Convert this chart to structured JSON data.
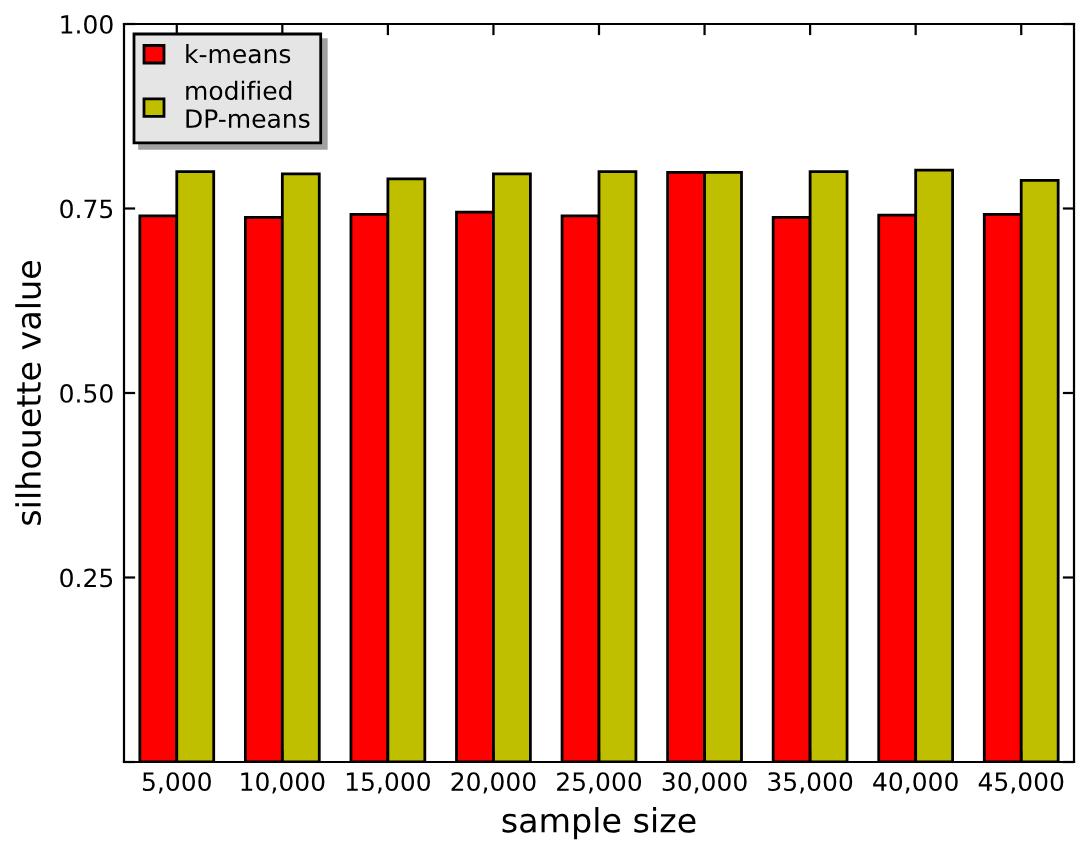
{
  "chart_data": {
    "type": "bar",
    "xlabel": "sample size",
    "ylabel": "silhouette value",
    "categories": [
      "5,000",
      "10,000",
      "15,000",
      "20,000",
      "25,000",
      "30,000",
      "35,000",
      "40,000",
      "45,000"
    ],
    "series": [
      {
        "name": "k-means",
        "color": "#ff0000",
        "values": [
          0.74,
          0.738,
          0.742,
          0.745,
          0.74,
          0.799,
          0.738,
          0.741,
          0.742
        ]
      },
      {
        "name": "modified\nDP-means",
        "color": "#bfbf00",
        "values": [
          0.8,
          0.797,
          0.79,
          0.797,
          0.8,
          0.799,
          0.8,
          0.802,
          0.788
        ]
      }
    ],
    "ylim": [
      0,
      1
    ],
    "yticks": [
      {
        "value": 0,
        "label": null
      },
      0.25,
      {
        "value": 0.5,
        "label": "0.50"
      },
      0.75,
      {
        "value": 1,
        "label": "1.00"
      }
    ],
    "grid": false,
    "legend": "top left"
  }
}
